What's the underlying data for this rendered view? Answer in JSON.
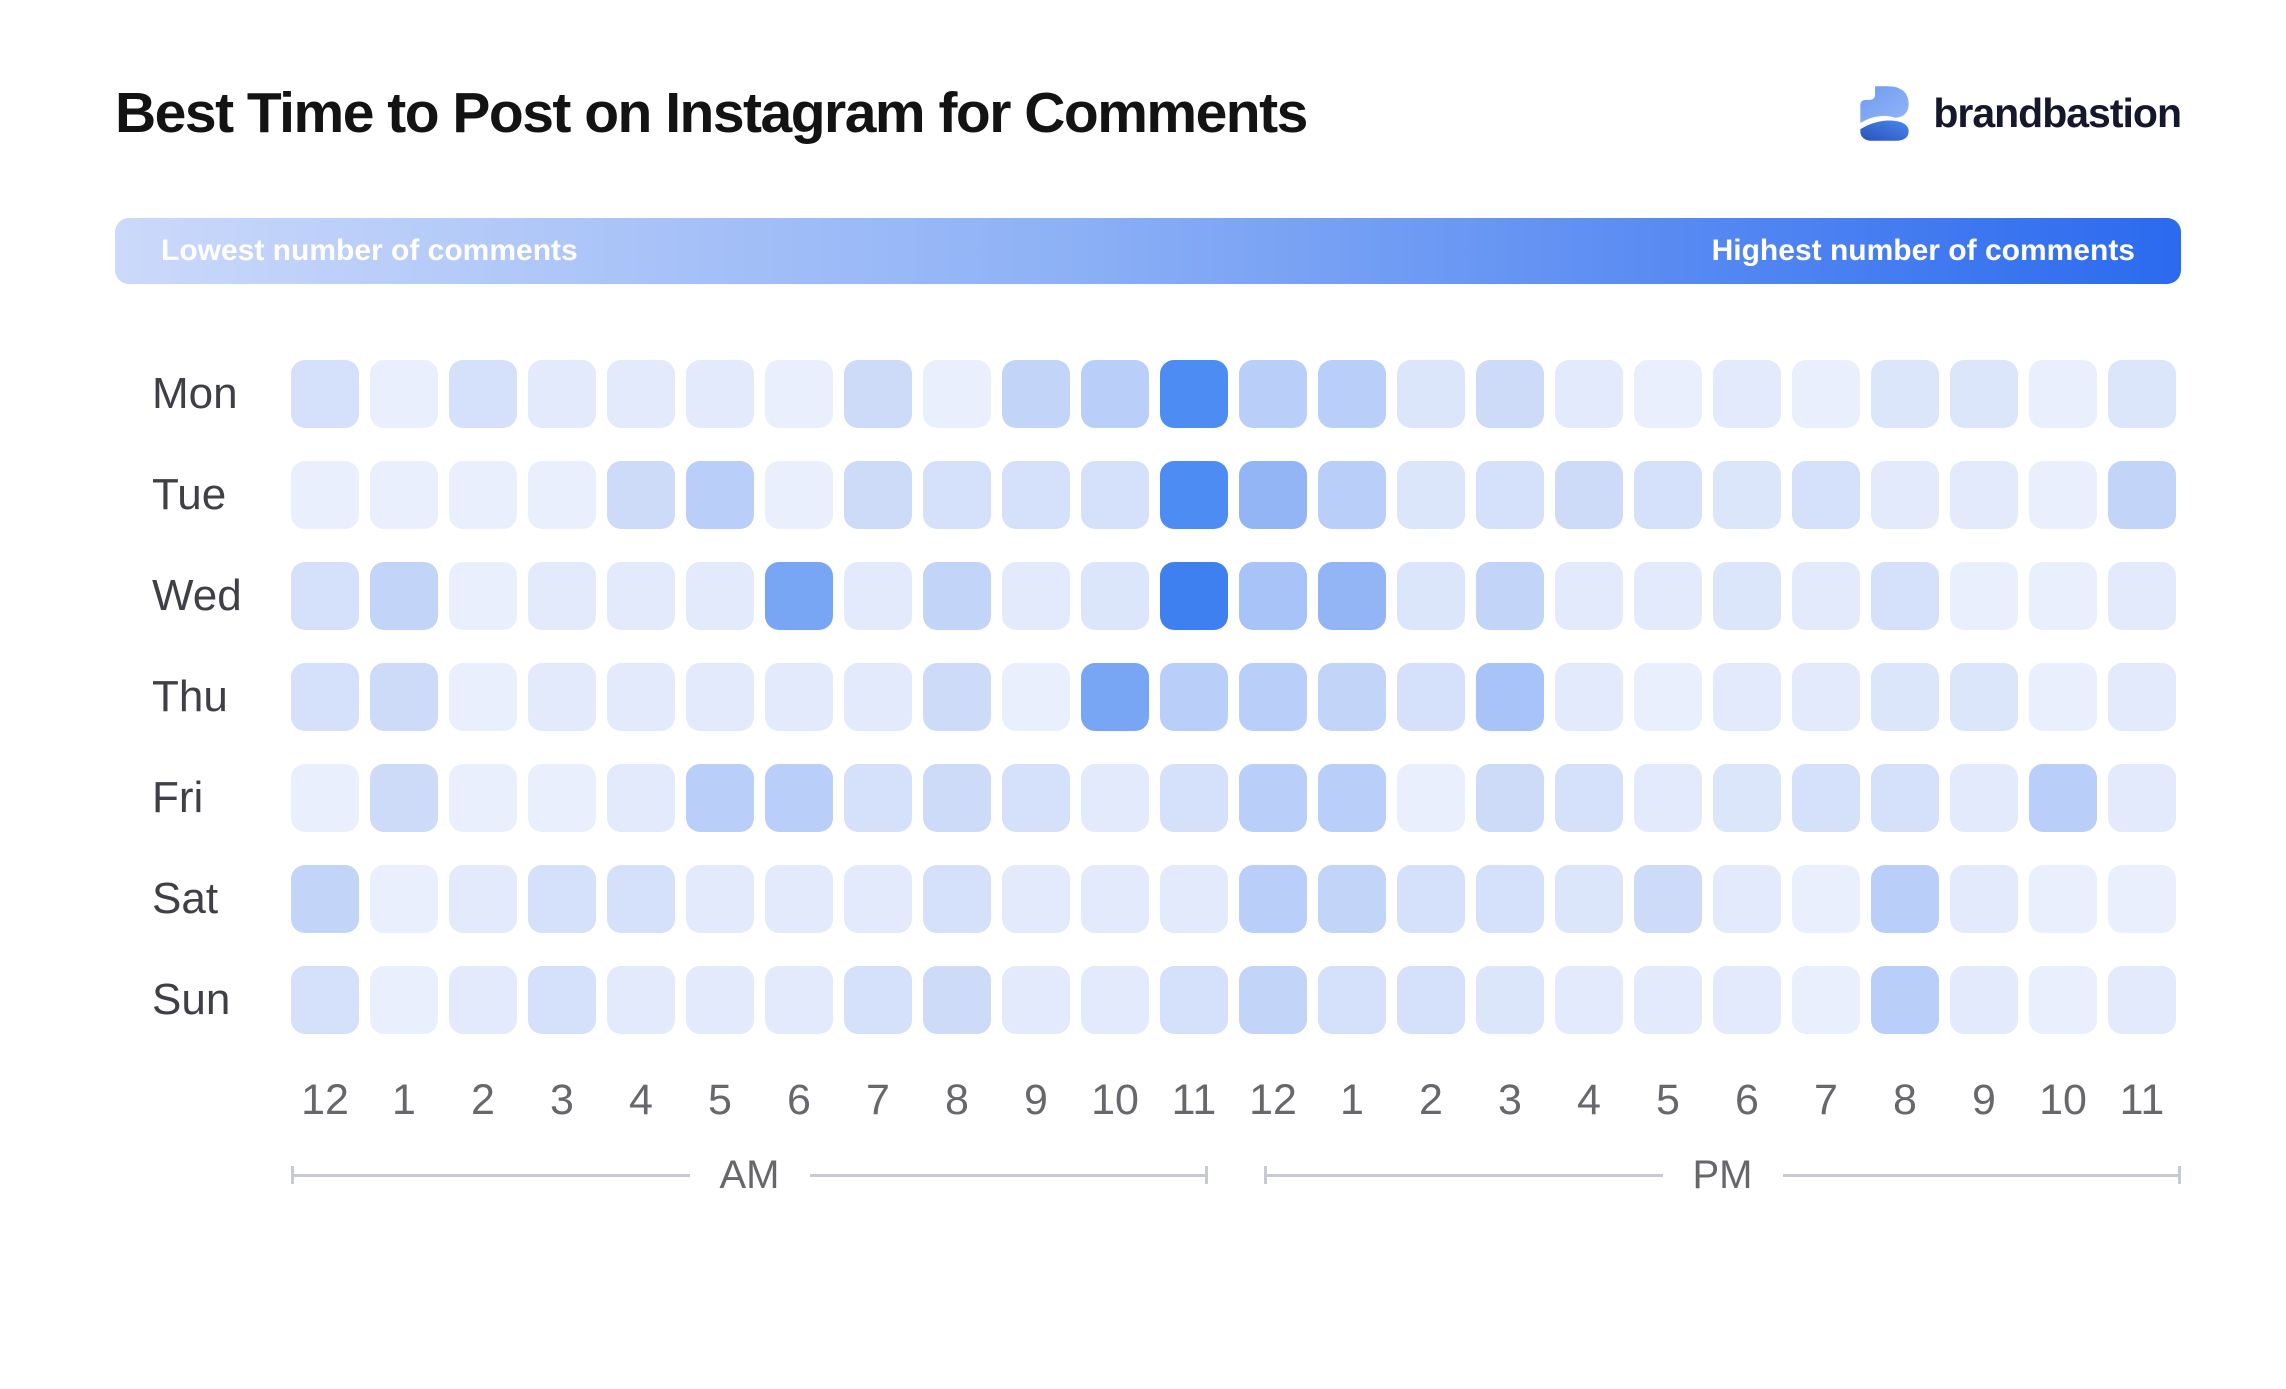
{
  "header": {
    "title": "Best Time to Post on Instagram for Comments",
    "logo_text": "brandbastion"
  },
  "legend": {
    "low_label": "Lowest number of comments",
    "high_label": "Highest number of comments",
    "gradient_start": "#CBD9FA",
    "gradient_mid": "#8FB2F6",
    "gradient_end": "#2B6AEF"
  },
  "chart_data": {
    "type": "heatmap",
    "title": "Best Time to Post on Instagram for Comments",
    "rows": [
      "Mon",
      "Tue",
      "Wed",
      "Thu",
      "Fri",
      "Sat",
      "Sun"
    ],
    "columns": [
      "12",
      "1",
      "2",
      "3",
      "4",
      "5",
      "6",
      "7",
      "8",
      "9",
      "10",
      "11",
      "12",
      "1",
      "2",
      "3",
      "4",
      "5",
      "6",
      "7",
      "8",
      "9",
      "10",
      "11"
    ],
    "periods": {
      "am": "AM",
      "pm": "PM"
    },
    "scale": {
      "min": 0,
      "max": 12,
      "meaning": "relative number of comments (0 = lowest, 12 = highest)"
    },
    "palette": [
      "#EEF3FD",
      "#E9EFFC",
      "#E3EAFB",
      "#DCE6FA",
      "#D5E0FA",
      "#CDDBF9",
      "#C3D4F9",
      "#B9CEF8",
      "#A7C3F7",
      "#93B5F6",
      "#78A6F5",
      "#4D8CF3",
      "#3E80F0"
    ],
    "levels": [
      [
        4,
        1,
        4,
        2,
        2,
        2,
        1,
        5,
        1,
        6,
        7,
        11,
        7,
        7,
        3,
        5,
        2,
        1,
        2,
        1,
        3,
        3,
        1,
        3
      ],
      [
        1,
        1,
        1,
        1,
        5,
        7,
        1,
        5,
        4,
        4,
        4,
        11,
        9,
        7,
        3,
        4,
        5,
        4,
        3,
        4,
        2,
        2,
        1,
        6
      ],
      [
        4,
        6,
        1,
        2,
        2,
        2,
        10,
        2,
        6,
        2,
        3,
        12,
        8,
        9,
        3,
        6,
        2,
        2,
        3,
        2,
        4,
        1,
        1,
        2
      ],
      [
        4,
        5,
        1,
        2,
        2,
        2,
        2,
        2,
        5,
        1,
        10,
        7,
        7,
        6,
        4,
        8,
        2,
        1,
        2,
        2,
        3,
        3,
        1,
        2
      ],
      [
        1,
        5,
        1,
        1,
        2,
        7,
        7,
        4,
        5,
        4,
        2,
        4,
        7,
        7,
        1,
        5,
        4,
        2,
        3,
        4,
        4,
        2,
        7,
        2
      ],
      [
        6,
        1,
        2,
        4,
        4,
        2,
        2,
        2,
        4,
        2,
        2,
        2,
        7,
        6,
        4,
        4,
        3,
        5,
        2,
        1,
        7,
        2,
        1,
        1
      ],
      [
        4,
        1,
        2,
        4,
        2,
        2,
        2,
        4,
        5,
        2,
        2,
        4,
        6,
        4,
        4,
        3,
        2,
        2,
        2,
        1,
        7,
        2,
        1,
        2
      ]
    ],
    "peak_cells": [
      {
        "row": "Wed",
        "hour": "11 AM",
        "level": 12
      },
      {
        "row": "Mon",
        "hour": "11 AM",
        "level": 11
      },
      {
        "row": "Tue",
        "hour": "11 AM",
        "level": 11
      }
    ],
    "legend_position": "top",
    "grid": "off"
  },
  "logo_colors": {
    "icon_top_light": "#8FB3F7",
    "icon_top_dark": "#5B8BEE",
    "icon_bottom_light": "#4B86F0",
    "icon_bottom_dark": "#2853B8"
  }
}
